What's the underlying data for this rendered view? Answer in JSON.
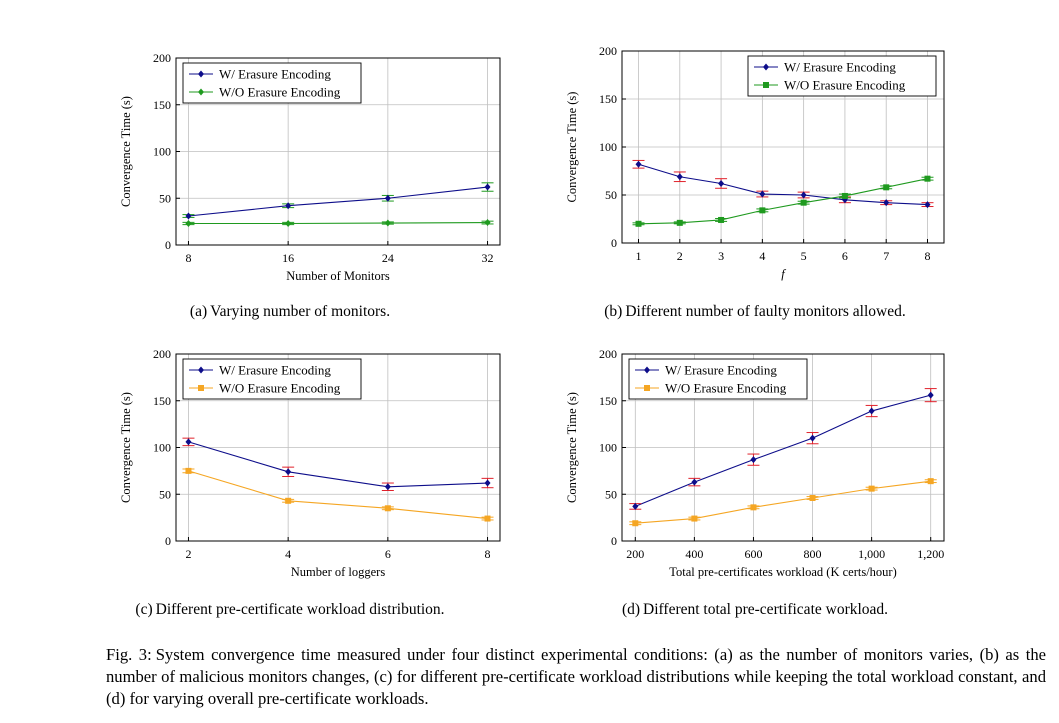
{
  "colors": {
    "blue": "#0d0d8a",
    "green": "#1f9a1f",
    "orange": "#f5a623",
    "grid": "#bfbfbf",
    "axis": "#000000"
  },
  "caption": {
    "label": "Fig. 3:",
    "text": "System convergence time measured under four distinct experimental conditions: (a) as the number of monitors varies, (b) as the number of malicious monitors changes, (c) for different pre-certificate workload distributions while keeping the total workload constant, and (d) for varying overall pre-certificate workloads."
  },
  "chart_data": [
    {
      "id": "a",
      "type": "line",
      "subcaption_label": "(a)",
      "subcaption": "Varying number of monitors.",
      "xlabel": "Number of Monitors",
      "ylabel": "Convergence Time (s)",
      "x": [
        8,
        16,
        24,
        32
      ],
      "xticks": [
        8,
        16,
        24,
        32
      ],
      "xtick_labels": [
        "8",
        "16",
        "24",
        "32"
      ],
      "xlim": [
        7,
        33
      ],
      "ylim": [
        0,
        200
      ],
      "yticks": [
        0,
        50,
        100,
        150,
        200
      ],
      "ytick_labels": [
        "0",
        "50",
        "100",
        "150",
        "200"
      ],
      "grid": true,
      "legend_position": "top-left",
      "series": [
        {
          "name": "W/ Erasure Encoding",
          "color": "#0d0d8a",
          "marker": "diamond",
          "values": [
            31,
            42,
            50,
            62
          ],
          "err": [
            1.5,
            2,
            3,
            4.5
          ],
          "err_color": "#1f9a1f"
        },
        {
          "name": "W/O Erasure Encoding",
          "color": "#1f9a1f",
          "marker": "diamond",
          "values": [
            23,
            23,
            23.5,
            24
          ],
          "err": [
            1.2,
            1.2,
            1.2,
            1.5
          ],
          "err_color": "#1f9a1f"
        }
      ]
    },
    {
      "id": "b",
      "type": "line",
      "subcaption_label": "(b)",
      "subcaption": "Different number of faulty monitors allowed.",
      "xlabel": "f",
      "xlabel_italic": true,
      "ylabel": "Convergence Time (s)",
      "x": [
        1,
        2,
        3,
        4,
        5,
        6,
        7,
        8
      ],
      "xticks": [
        1,
        2,
        3,
        4,
        5,
        6,
        7,
        8
      ],
      "xtick_labels": [
        "1",
        "2",
        "3",
        "4",
        "5",
        "6",
        "7",
        "8"
      ],
      "xlim": [
        0.6,
        8.4
      ],
      "ylim": [
        0,
        200
      ],
      "yticks": [
        0,
        50,
        100,
        150,
        200
      ],
      "ytick_labels": [
        "0",
        "50",
        "100",
        "150",
        "200"
      ],
      "grid": true,
      "legend_position": "top-right",
      "series": [
        {
          "name": "W/ Erasure Encoding",
          "color": "#0d0d8a",
          "marker": "diamond",
          "values": [
            82,
            69,
            62,
            51,
            50,
            45,
            42,
            40
          ],
          "err": [
            4,
            5,
            5,
            3,
            3,
            3,
            2,
            2
          ],
          "err_color": "#e0202a"
        },
        {
          "name": "W/O Erasure Encoding",
          "color": "#1f9a1f",
          "marker": "square",
          "values": [
            20,
            21,
            24,
            34,
            42,
            49,
            58,
            67
          ],
          "err": [
            1,
            1,
            1.5,
            1.5,
            1.5,
            2,
            1.5,
            1.5
          ],
          "err_color": "#1f9a1f"
        }
      ]
    },
    {
      "id": "c",
      "type": "line",
      "subcaption_label": "(c)",
      "subcaption": "Different pre-certificate workload distribution.",
      "xlabel": "Number of loggers",
      "ylabel": "Convergence Time (s)",
      "x": [
        2,
        4,
        6,
        8
      ],
      "xticks": [
        2,
        4,
        6,
        8
      ],
      "xtick_labels": [
        "2",
        "4",
        "6",
        "8"
      ],
      "xlim": [
        1.75,
        8.25
      ],
      "ylim": [
        0,
        200
      ],
      "yticks": [
        0,
        50,
        100,
        150,
        200
      ],
      "ytick_labels": [
        "0",
        "50",
        "100",
        "150",
        "200"
      ],
      "grid": true,
      "legend_position": "top-left",
      "series": [
        {
          "name": "W/ Erasure Encoding",
          "color": "#0d0d8a",
          "marker": "diamond",
          "values": [
            106,
            74,
            58,
            62
          ],
          "err": [
            4,
            5,
            4,
            5
          ],
          "err_color": "#e0202a"
        },
        {
          "name": "W/O Erasure Encoding",
          "color": "#f5a623",
          "marker": "square",
          "values": [
            75,
            43,
            35,
            24
          ],
          "err": [
            2,
            1.5,
            1.5,
            1.5
          ],
          "err_color": "#f5a623"
        }
      ]
    },
    {
      "id": "d",
      "type": "line",
      "subcaption_label": "(d)",
      "subcaption": "Different total pre-certificate workload.",
      "xlabel": "Total pre-certificates workload (K certs/hour)",
      "ylabel": "Convergence Time (s)",
      "x": [
        200,
        400,
        600,
        800,
        1000,
        1200
      ],
      "xticks": [
        200,
        400,
        600,
        800,
        1000,
        1200
      ],
      "xtick_labels": [
        "200",
        "400",
        "600",
        "800",
        "1,000",
        "1,200"
      ],
      "xlim": [
        155,
        1245
      ],
      "ylim": [
        0,
        200
      ],
      "yticks": [
        0,
        50,
        100,
        150,
        200
      ],
      "ytick_labels": [
        "0",
        "50",
        "100",
        "150",
        "200"
      ],
      "grid": true,
      "legend_position": "top-left",
      "series": [
        {
          "name": "W/ Erasure Encoding",
          "color": "#0d0d8a",
          "marker": "diamond",
          "values": [
            37,
            63,
            87,
            110,
            139,
            156
          ],
          "err": [
            3,
            4,
            6,
            6,
            6,
            7
          ],
          "err_color": "#e0202a"
        },
        {
          "name": "W/O Erasure Encoding",
          "color": "#f5a623",
          "marker": "square",
          "values": [
            19,
            24,
            36,
            46,
            56,
            64
          ],
          "err": [
            1.5,
            1.5,
            1.5,
            1.5,
            1.5,
            1.5
          ],
          "err_color": "#f5a623"
        }
      ]
    }
  ]
}
